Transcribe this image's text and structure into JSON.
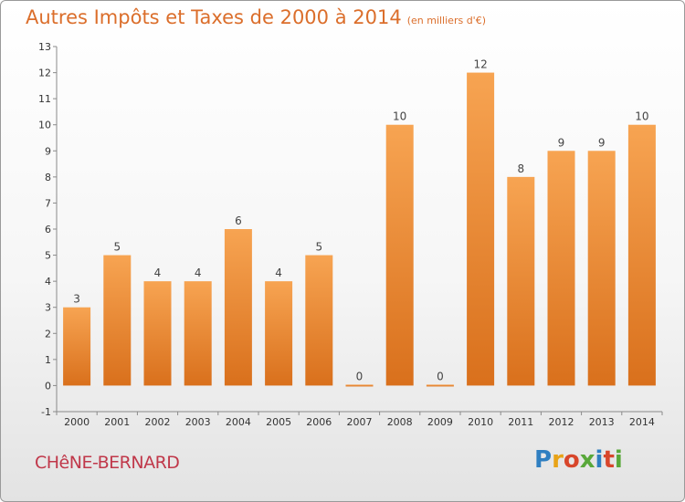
{
  "header": {
    "title": "Autres Impôts et Taxes de 2000 à 2014",
    "subtitle": "(en milliers d'€)"
  },
  "footer": {
    "commune": "CHêNE-BERNARD",
    "logo": "Proxiti"
  },
  "colors": {
    "title": "#db6e2b",
    "bar_light": "#f7a452",
    "bar_dark": "#d9701c",
    "commune": "#c0384a"
  },
  "chart_data": {
    "type": "bar",
    "title": "Autres Impôts et Taxes de 2000 à 2014",
    "subtitle": "(en milliers d'€)",
    "categories": [
      "2000",
      "2001",
      "2002",
      "2003",
      "2004",
      "2005",
      "2006",
      "2007",
      "2008",
      "2009",
      "2010",
      "2011",
      "2012",
      "2013",
      "2014"
    ],
    "values": [
      3,
      5,
      4,
      4,
      6,
      4,
      5,
      0,
      10,
      0,
      12,
      8,
      9,
      9,
      10
    ],
    "xlabel": "",
    "ylabel": "",
    "ylim": [
      -1,
      13
    ],
    "yticks": [
      -1,
      0,
      1,
      2,
      3,
      4,
      5,
      6,
      7,
      8,
      9,
      10,
      11,
      12,
      13
    ],
    "grid": false,
    "legend": "none"
  }
}
